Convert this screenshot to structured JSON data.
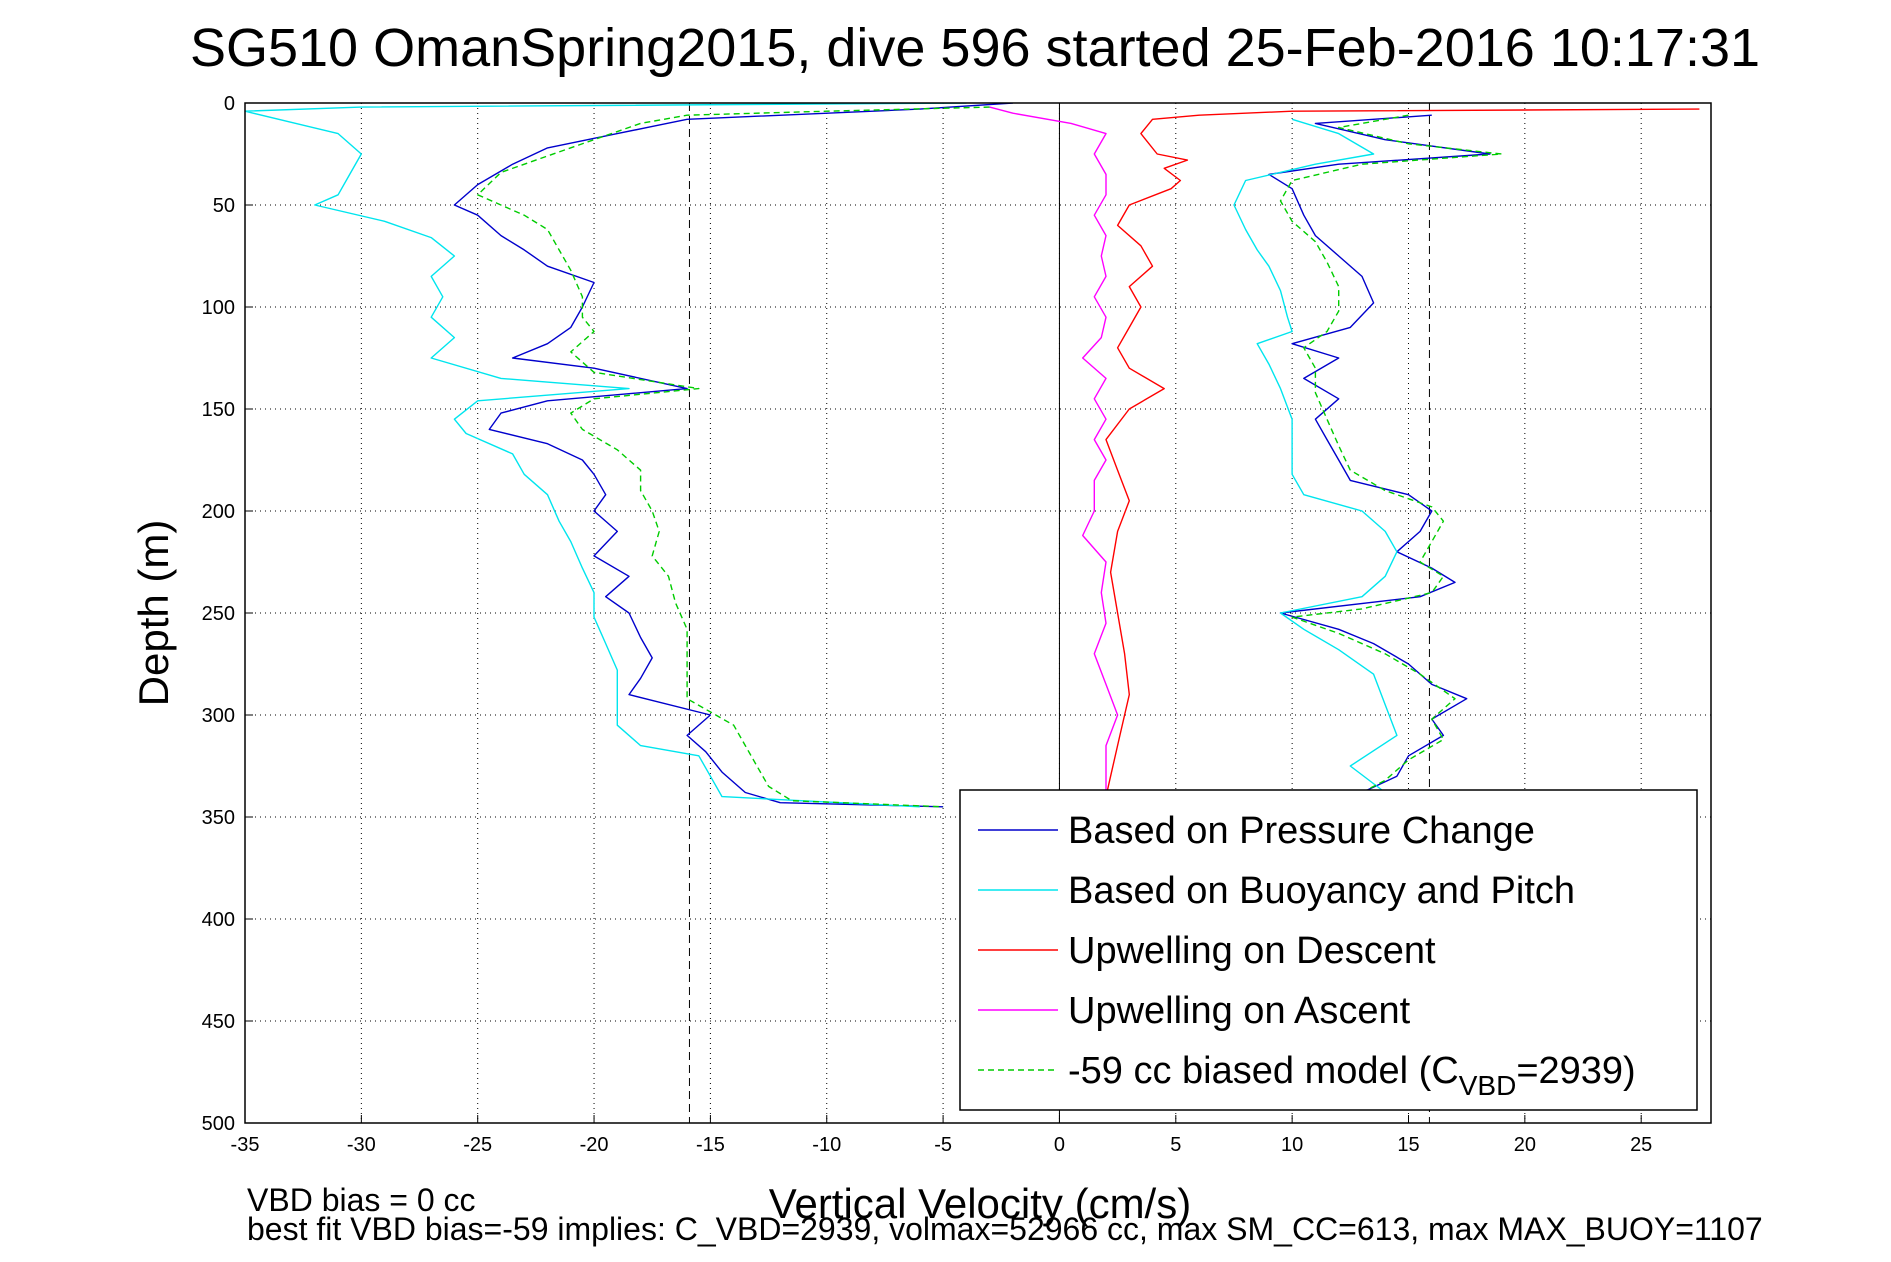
{
  "chart_data": {
    "type": "line",
    "title": "SG510 OmanSpring2015, dive 596 started 25-Feb-2016 10:17:31",
    "xlabel": "Vertical Velocity (cm/s)",
    "ylabel": "Depth (m)",
    "xlim": [
      -35,
      28
    ],
    "ylim": [
      0,
      500
    ],
    "y_reversed": true,
    "grid": true,
    "legend_position": "bottom-right",
    "x_ticks": [
      "-35",
      "-30",
      "-25",
      "-20",
      "-15",
      "-10",
      "-5",
      "0",
      "5",
      "10",
      "15",
      "20",
      "25"
    ],
    "y_ticks": [
      "0",
      "50",
      "100",
      "150",
      "200",
      "250",
      "300",
      "350",
      "400",
      "450",
      "500"
    ],
    "reference_lines": [
      {
        "x": -15.9,
        "style": "dashed",
        "color": "#000000"
      },
      {
        "x": 0,
        "style": "solid",
        "color": "#000000"
      },
      {
        "x": 15.9,
        "style": "dashed",
        "color": "#000000"
      }
    ],
    "series": [
      {
        "name": "Based on Pressure Change",
        "color": "#0000cc",
        "style": "solid",
        "dive": [
          [
            -2,
            0
          ],
          [
            -6,
            3
          ],
          [
            -16,
            8
          ],
          [
            -19,
            15
          ],
          [
            -22,
            22
          ],
          [
            -23.5,
            30
          ],
          [
            -25,
            40
          ],
          [
            -26,
            50
          ],
          [
            -25,
            55
          ],
          [
            -24,
            65
          ],
          [
            -23,
            72
          ],
          [
            -22,
            80
          ],
          [
            -20,
            88
          ],
          [
            -20.5,
            100
          ],
          [
            -21,
            110
          ],
          [
            -22,
            118
          ],
          [
            -23.5,
            125
          ],
          [
            -20,
            130
          ],
          [
            -16,
            140
          ],
          [
            -22,
            146
          ],
          [
            -24,
            152
          ],
          [
            -24.5,
            160
          ],
          [
            -22,
            167
          ],
          [
            -20.5,
            175
          ],
          [
            -20,
            182
          ],
          [
            -19.5,
            192
          ],
          [
            -20,
            200
          ],
          [
            -19,
            210
          ],
          [
            -20,
            222
          ],
          [
            -18.5,
            232
          ],
          [
            -19.5,
            242
          ],
          [
            -18.5,
            250
          ],
          [
            -18,
            262
          ],
          [
            -17.5,
            272
          ],
          [
            -18,
            282
          ],
          [
            -18.5,
            290
          ],
          [
            -15,
            300
          ],
          [
            -16,
            310
          ],
          [
            -15.2,
            318
          ],
          [
            -14.5,
            328
          ],
          [
            -13.5,
            338
          ],
          [
            -12,
            343
          ],
          [
            -5,
            345
          ]
        ],
        "climb": [
          [
            16,
            6
          ],
          [
            11,
            10
          ],
          [
            14,
            18
          ],
          [
            18.5,
            25
          ],
          [
            12,
            30
          ],
          [
            9,
            35
          ],
          [
            10,
            42
          ],
          [
            10.5,
            55
          ],
          [
            11,
            65
          ],
          [
            12,
            75
          ],
          [
            13,
            85
          ],
          [
            13.5,
            98
          ],
          [
            12.5,
            110
          ],
          [
            10,
            118
          ],
          [
            12,
            125
          ],
          [
            10.5,
            135
          ],
          [
            12,
            145
          ],
          [
            11,
            155
          ],
          [
            11.5,
            165
          ],
          [
            12,
            175
          ],
          [
            12.5,
            185
          ],
          [
            15,
            192
          ],
          [
            16,
            200
          ],
          [
            15.5,
            210
          ],
          [
            14.5,
            220
          ],
          [
            16,
            228
          ],
          [
            17,
            235
          ],
          [
            15.5,
            242
          ],
          [
            9.5,
            250
          ],
          [
            12,
            258
          ],
          [
            13.5,
            265
          ],
          [
            15,
            275
          ],
          [
            16,
            285
          ],
          [
            17.5,
            292
          ],
          [
            16,
            302
          ],
          [
            16.5,
            310
          ],
          [
            15,
            320
          ],
          [
            14.5,
            330
          ],
          [
            13,
            338
          ]
        ]
      },
      {
        "name": "Based on Buoyancy and Pitch",
        "color": "#00e5ee",
        "style": "solid",
        "dive": [
          [
            -4,
            0
          ],
          [
            -30,
            2
          ],
          [
            -35,
            4
          ],
          [
            -31,
            15
          ],
          [
            -30,
            25
          ],
          [
            -30.5,
            35
          ],
          [
            -31,
            45
          ],
          [
            -32,
            50
          ],
          [
            -29,
            58
          ],
          [
            -27,
            66
          ],
          [
            -26,
            75
          ],
          [
            -27,
            85
          ],
          [
            -26.5,
            95
          ],
          [
            -27,
            105
          ],
          [
            -26,
            115
          ],
          [
            -27,
            125
          ],
          [
            -24,
            135
          ],
          [
            -18.5,
            140
          ],
          [
            -25,
            146
          ],
          [
            -26,
            155
          ],
          [
            -25.5,
            162
          ],
          [
            -23.5,
            172
          ],
          [
            -23,
            182
          ],
          [
            -22,
            192
          ],
          [
            -21.5,
            205
          ],
          [
            -21,
            215
          ],
          [
            -20.5,
            228
          ],
          [
            -20,
            240
          ],
          [
            -20,
            252
          ],
          [
            -19.5,
            265
          ],
          [
            -19,
            278
          ],
          [
            -19,
            290
          ],
          [
            -19,
            305
          ],
          [
            -18,
            315
          ],
          [
            -15.5,
            320
          ],
          [
            -15,
            330
          ],
          [
            -14.5,
            340
          ],
          [
            -6,
            345
          ]
        ],
        "climb": [
          [
            10,
            8
          ],
          [
            12,
            15
          ],
          [
            13.5,
            25
          ],
          [
            11,
            30
          ],
          [
            8,
            38
          ],
          [
            7.5,
            50
          ],
          [
            8,
            62
          ],
          [
            8.5,
            72
          ],
          [
            9,
            80
          ],
          [
            9.5,
            92
          ],
          [
            9.8,
            105
          ],
          [
            10,
            112
          ],
          [
            8.5,
            118
          ],
          [
            9,
            128
          ],
          [
            9.5,
            140
          ],
          [
            10,
            155
          ],
          [
            10,
            170
          ],
          [
            10,
            182
          ],
          [
            10.5,
            192
          ],
          [
            13,
            200
          ],
          [
            14,
            210
          ],
          [
            14.5,
            220
          ],
          [
            14,
            232
          ],
          [
            13,
            242
          ],
          [
            9.5,
            250
          ],
          [
            10.5,
            258
          ],
          [
            12,
            268
          ],
          [
            13.5,
            280
          ],
          [
            14,
            295
          ],
          [
            14.5,
            310
          ],
          [
            12.5,
            325
          ],
          [
            14,
            338
          ]
        ]
      },
      {
        "name": "Upwelling on Descent",
        "color": "#ff0000",
        "style": "solid",
        "descent": [
          [
            27.5,
            3
          ],
          [
            10,
            4
          ],
          [
            6,
            6
          ],
          [
            4,
            8
          ],
          [
            3.5,
            15
          ],
          [
            4.2,
            25
          ],
          [
            5.5,
            28
          ],
          [
            4.5,
            32
          ],
          [
            5.2,
            38
          ],
          [
            4.8,
            42
          ],
          [
            3,
            50
          ],
          [
            2.5,
            60
          ],
          [
            3.5,
            70
          ],
          [
            4,
            80
          ],
          [
            3,
            90
          ],
          [
            3.5,
            100
          ],
          [
            3,
            110
          ],
          [
            2.5,
            120
          ],
          [
            3,
            130
          ],
          [
            4.5,
            140
          ],
          [
            3,
            150
          ],
          [
            2,
            165
          ],
          [
            2.5,
            180
          ],
          [
            3,
            195
          ],
          [
            2.5,
            210
          ],
          [
            2.2,
            230
          ],
          [
            2.5,
            250
          ],
          [
            2.8,
            270
          ],
          [
            3,
            290
          ],
          [
            2.6,
            310
          ],
          [
            2.2,
            330
          ],
          [
            2,
            340
          ]
        ]
      },
      {
        "name": "Upwelling on Ascent",
        "color": "#ff00ff",
        "style": "solid",
        "ascent": [
          [
            -3,
            2
          ],
          [
            -2,
            5
          ],
          [
            0.5,
            10
          ],
          [
            2,
            15
          ],
          [
            1.5,
            25
          ],
          [
            2,
            35
          ],
          [
            2,
            45
          ],
          [
            1.5,
            55
          ],
          [
            2,
            65
          ],
          [
            1.8,
            75
          ],
          [
            2,
            85
          ],
          [
            1.5,
            95
          ],
          [
            2,
            105
          ],
          [
            1.8,
            115
          ],
          [
            1,
            125
          ],
          [
            2,
            135
          ],
          [
            1.5,
            145
          ],
          [
            2,
            155
          ],
          [
            1.5,
            165
          ],
          [
            2,
            175
          ],
          [
            1.5,
            185
          ],
          [
            1.5,
            200
          ],
          [
            1,
            212
          ],
          [
            2,
            225
          ],
          [
            1.8,
            240
          ],
          [
            2,
            255
          ],
          [
            1.5,
            270
          ],
          [
            2,
            285
          ],
          [
            2.5,
            300
          ],
          [
            2,
            315
          ],
          [
            2,
            330
          ],
          [
            2,
            340
          ]
        ]
      },
      {
        "name": "-59 cc biased model (C_VBD=2939)",
        "color": "#00cc00",
        "style": "dashed",
        "dive": [
          [
            -3,
            2
          ],
          [
            -10,
            4
          ],
          [
            -16,
            6
          ],
          [
            -18,
            10
          ],
          [
            -20,
            18
          ],
          [
            -22,
            26
          ],
          [
            -24,
            34
          ],
          [
            -25,
            45
          ],
          [
            -23,
            55
          ],
          [
            -22,
            62
          ],
          [
            -21.5,
            72
          ],
          [
            -21,
            82
          ],
          [
            -20.5,
            95
          ],
          [
            -20.5,
            105
          ],
          [
            -20,
            112
          ],
          [
            -21,
            122
          ],
          [
            -20,
            132
          ],
          [
            -15.5,
            140
          ],
          [
            -20,
            145
          ],
          [
            -21,
            152
          ],
          [
            -20.5,
            160
          ],
          [
            -19,
            170
          ],
          [
            -18,
            180
          ],
          [
            -18,
            190
          ],
          [
            -17.5,
            200
          ],
          [
            -17.2,
            210
          ],
          [
            -17.5,
            222
          ],
          [
            -16.8,
            232
          ],
          [
            -16.5,
            245
          ],
          [
            -16,
            258
          ],
          [
            -16,
            270
          ],
          [
            -16,
            282
          ],
          [
            -16,
            292
          ],
          [
            -14,
            305
          ],
          [
            -13.5,
            315
          ],
          [
            -13,
            325
          ],
          [
            -12.5,
            335
          ],
          [
            -11.5,
            342
          ],
          [
            -5,
            345
          ]
        ],
        "climb": [
          [
            15,
            6
          ],
          [
            12,
            12
          ],
          [
            15,
            20
          ],
          [
            19,
            25
          ],
          [
            13,
            30
          ],
          [
            10,
            38
          ],
          [
            9.5,
            48
          ],
          [
            10,
            58
          ],
          [
            11,
            68
          ],
          [
            11.5,
            78
          ],
          [
            12,
            90
          ],
          [
            12,
            102
          ],
          [
            11.5,
            112
          ],
          [
            10.5,
            120
          ],
          [
            11,
            130
          ],
          [
            11,
            142
          ],
          [
            11.5,
            155
          ],
          [
            12,
            168
          ],
          [
            12.5,
            180
          ],
          [
            14,
            190
          ],
          [
            16,
            198
          ],
          [
            16.5,
            205
          ],
          [
            16,
            215
          ],
          [
            15.5,
            225
          ],
          [
            16.5,
            232
          ],
          [
            16,
            240
          ],
          [
            13,
            248
          ],
          [
            10,
            252
          ],
          [
            12,
            260
          ],
          [
            14,
            270
          ],
          [
            15.5,
            280
          ],
          [
            17,
            292
          ],
          [
            16,
            302
          ],
          [
            16.5,
            312
          ],
          [
            15,
            322
          ],
          [
            14,
            332
          ],
          [
            13,
            338
          ]
        ]
      }
    ],
    "footer_lines": [
      "VBD bias = 0 cc",
      "best fit VBD bias=-59 implies: C_VBD=2939, volmax=52966 cc, max SM_CC=613, max MAX_BUOY=1107"
    ]
  },
  "legend": {
    "items": [
      {
        "label": "Based on Pressure Change",
        "color": "#0000cc",
        "dash": false
      },
      {
        "label": "Based on Buoyancy and Pitch",
        "color": "#00e5ee",
        "dash": false
      },
      {
        "label": "Upwelling on Descent",
        "color": "#ff0000",
        "dash": false
      },
      {
        "label": "Upwelling on Ascent",
        "color": "#ff00ff",
        "dash": false
      },
      {
        "label_prefix": "-59 cc biased model (C",
        "label_sub": "VBD",
        "label_suffix": "=2939)",
        "color": "#00cc00",
        "dash": true
      }
    ]
  }
}
